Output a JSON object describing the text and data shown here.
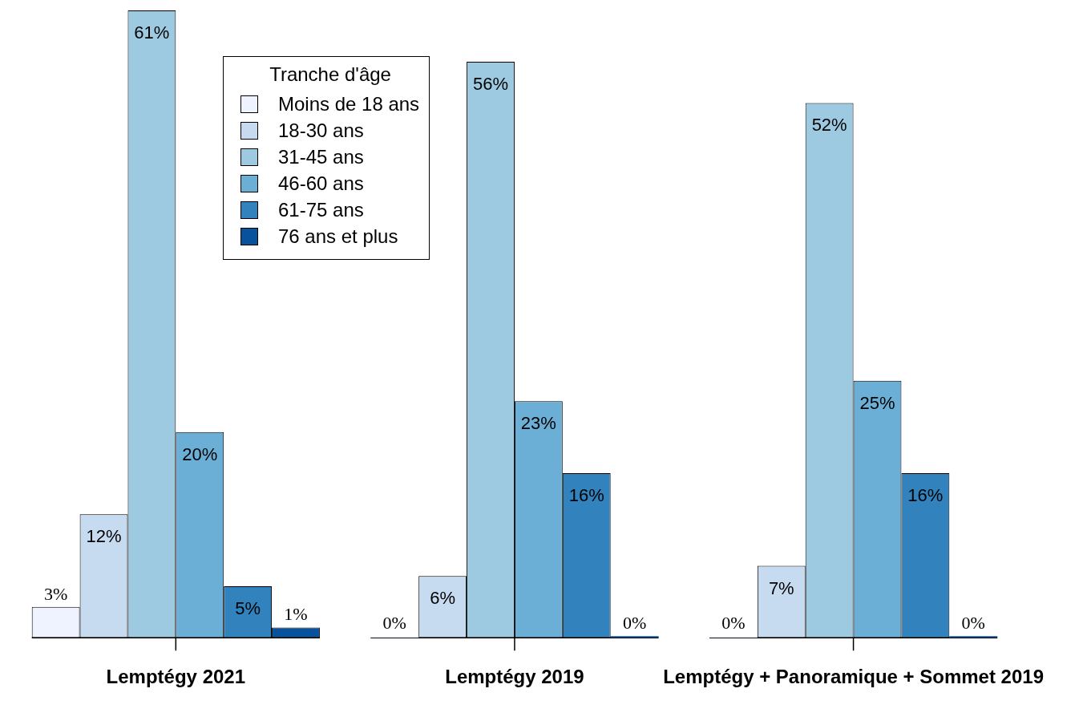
{
  "chart_data": {
    "type": "bar",
    "legend_title": "Tranche d'âge",
    "legend": "top",
    "categories": [
      "Lemptégy 2021",
      "Lemptégy 2019",
      "Lemptégy + Panoramique + Sommet 2019"
    ],
    "series": [
      {
        "name": "Moins de 18 ans",
        "color": "#eff3ff",
        "values": [
          3,
          0,
          0
        ],
        "value_labels": [
          "3%",
          "0%",
          "0%"
        ]
      },
      {
        "name": "18-30 ans",
        "color": "#c6dbef",
        "values": [
          12,
          6,
          7
        ],
        "value_labels": [
          "12%",
          "6%",
          "7%"
        ]
      },
      {
        "name": "31-45 ans",
        "color": "#9ecae1",
        "values": [
          61,
          56,
          52
        ],
        "value_labels": [
          "61%",
          "56%",
          "52%"
        ]
      },
      {
        "name": "46-60 ans",
        "color": "#6baed6",
        "values": [
          20,
          23,
          25
        ],
        "value_labels": [
          "20%",
          "23%",
          "25%"
        ]
      },
      {
        "name": "61-75 ans",
        "color": "#3182bd",
        "values": [
          5,
          16,
          16
        ],
        "value_labels": [
          "5%",
          "16%",
          "16%"
        ]
      },
      {
        "name": "76 ans et plus",
        "color": "#08519c",
        "values": [
          1,
          0,
          0
        ],
        "value_labels": [
          "1%",
          "0%",
          "0%"
        ]
      }
    ]
  }
}
